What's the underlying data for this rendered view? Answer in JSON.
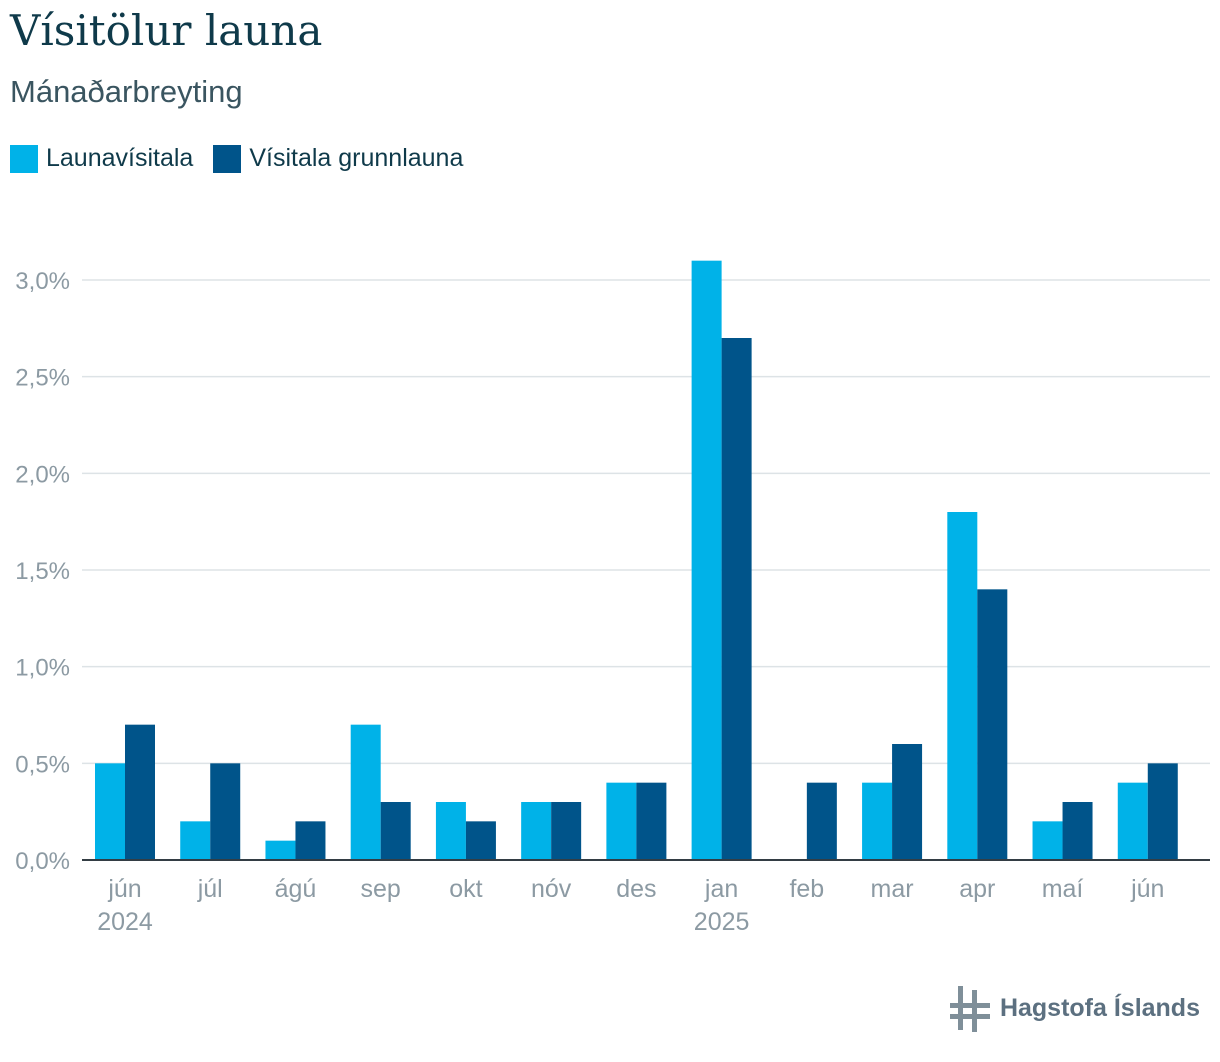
{
  "title": "Vísitölur launa",
  "subtitle": "Mánaðarbreyting",
  "legend": [
    {
      "label": "Launavísitala",
      "color": "#00b2e8"
    },
    {
      "label": "Vísitala grunnlauna",
      "color": "#00548a"
    }
  ],
  "logo": {
    "text": "Hagstofa Íslands",
    "icon": "hagstofa-logo-icon"
  },
  "chart_data": {
    "type": "bar",
    "categories": [
      "jún",
      "júl",
      "ágú",
      "sep",
      "okt",
      "nóv",
      "des",
      "jan",
      "feb",
      "mar",
      "apr",
      "maí",
      "jún"
    ],
    "year_labels": [
      {
        "index": 0,
        "label": "2024"
      },
      {
        "index": 7,
        "label": "2025"
      }
    ],
    "series": [
      {
        "name": "Launavísitala",
        "color": "#00b2e8",
        "values": [
          0.5,
          0.2,
          0.1,
          0.7,
          0.3,
          0.3,
          0.4,
          3.1,
          0.0,
          0.4,
          1.8,
          0.2,
          0.4
        ]
      },
      {
        "name": "Vísitala grunnlauna",
        "color": "#00548a",
        "values": [
          0.7,
          0.5,
          0.2,
          0.3,
          0.2,
          0.3,
          0.4,
          2.7,
          0.4,
          0.6,
          1.4,
          0.3,
          0.5
        ]
      }
    ],
    "y_ticks": [
      "0,0%",
      "0,5%",
      "1,0%",
      "1,5%",
      "2,0%",
      "2,5%",
      "3,0%"
    ],
    "y_tick_values": [
      0,
      0.5,
      1.0,
      1.5,
      2.0,
      2.5,
      3.0
    ],
    "ylim": [
      0,
      3.0
    ],
    "grid": true,
    "legend_position": "top-left"
  }
}
